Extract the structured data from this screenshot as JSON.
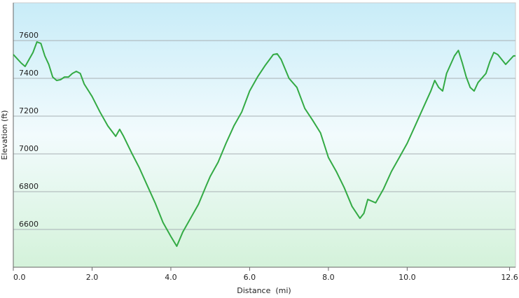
{
  "chart_data": {
    "type": "line",
    "x_label": "Distance  (mi)",
    "y_label": "Elevation (ft)",
    "x": [
      0.0,
      0.2,
      0.3,
      0.4,
      0.5,
      0.6,
      0.7,
      0.8,
      0.9,
      1.0,
      1.1,
      1.2,
      1.3,
      1.4,
      1.5,
      1.6,
      1.7,
      1.8,
      2.0,
      2.2,
      2.4,
      2.6,
      2.7,
      2.8,
      3.0,
      3.2,
      3.4,
      3.6,
      3.8,
      4.0,
      4.15,
      4.3,
      4.5,
      4.7,
      4.9,
      5.0,
      5.2,
      5.4,
      5.6,
      5.8,
      6.0,
      6.2,
      6.4,
      6.6,
      6.7,
      6.8,
      7.0,
      7.2,
      7.4,
      7.6,
      7.8,
      8.0,
      8.2,
      8.4,
      8.6,
      8.8,
      8.9,
      9.0,
      9.2,
      9.4,
      9.6,
      9.8,
      10.0,
      10.2,
      10.4,
      10.6,
      10.7,
      10.8,
      10.9,
      11.0,
      11.2,
      11.3,
      11.4,
      11.5,
      11.6,
      11.7,
      11.8,
      12.0,
      12.1,
      12.2,
      12.3,
      12.5,
      12.7,
      12.75
    ],
    "series": [
      {
        "color": "#33aa44",
        "values": [
          7526,
          7481,
          7463,
          7500,
          7537,
          7593,
          7585,
          7519,
          7474,
          7407,
          7389,
          7393,
          7407,
          7407,
          7426,
          7437,
          7426,
          7370,
          7304,
          7222,
          7148,
          7093,
          7130,
          7093,
          7007,
          6926,
          6833,
          6741,
          6637,
          6563,
          6511,
          6585,
          6659,
          6733,
          6833,
          6881,
          6956,
          7056,
          7148,
          7222,
          7333,
          7407,
          7470,
          7526,
          7530,
          7500,
          7400,
          7352,
          7241,
          7178,
          7111,
          6981,
          6907,
          6822,
          6722,
          6659,
          6685,
          6759,
          6741,
          6815,
          6907,
          6981,
          7056,
          7148,
          7241,
          7333,
          7389,
          7352,
          7333,
          7426,
          7519,
          7548,
          7481,
          7407,
          7352,
          7333,
          7378,
          7426,
          7489,
          7537,
          7526,
          7474,
          7519,
          7519
        ]
      }
    ],
    "xlim": [
      0,
      12.75
    ],
    "ylim": [
      6400,
      7800
    ],
    "xticks": [
      {
        "value": 0,
        "label": "0.0"
      },
      {
        "value": 2,
        "label": "2.0"
      },
      {
        "value": 4,
        "label": "4.0"
      },
      {
        "value": 6,
        "label": "6.0"
      },
      {
        "value": 8,
        "label": "8.0"
      },
      {
        "value": 10,
        "label": "10.0"
      },
      {
        "value": 12.6,
        "label": "12.6"
      }
    ],
    "yticks": [
      6600,
      6800,
      7000,
      7200,
      7400,
      7600
    ],
    "grid": true
  }
}
